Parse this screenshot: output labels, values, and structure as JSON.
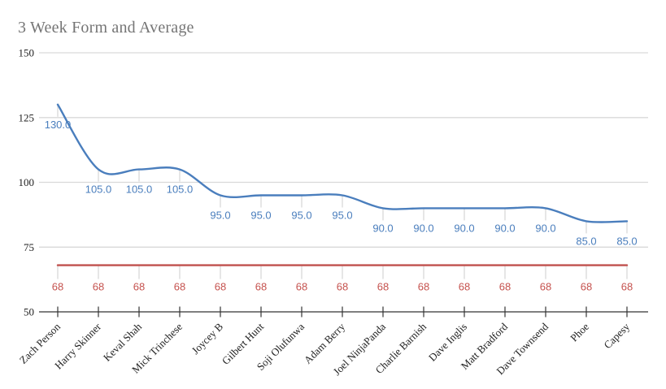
{
  "chart_data": {
    "type": "line",
    "smooth": true,
    "title": "3 Week Form and Average",
    "title_color": "#757575",
    "categories": [
      "Zach Person",
      "Harry Skinner",
      "Keval Shah",
      "Mick Trinchese",
      "Joycey B",
      "Gilbert Hunt",
      "Soji Olufunwa",
      "Adam Berry",
      "Joel NinjaPanda",
      "Charlie Barnish",
      "Dave Inglis",
      "Matt Bradford",
      "Dave Townsend",
      "Phoe",
      "Capesy"
    ],
    "series": [
      {
        "name": "form",
        "color": "#4a7ebd",
        "label_color": "#4a7ebd",
        "values": [
          130,
          105,
          105,
          105,
          95,
          95,
          95,
          95,
          90,
          90,
          90,
          90,
          90,
          85,
          85
        ],
        "labels": [
          "130.0",
          "105.0",
          "105.0",
          "105.0",
          "95.0",
          "95.0",
          "95.0",
          "95.0",
          "90.0",
          "90.0",
          "90.0",
          "90.0",
          "90.0",
          "85.0",
          "85.0"
        ]
      },
      {
        "name": "average",
        "color": "#c0504d",
        "label_color": "#c5524e",
        "values": [
          68,
          68,
          68,
          68,
          68,
          68,
          68,
          68,
          68,
          68,
          68,
          68,
          68,
          68,
          68
        ],
        "labels": [
          "68",
          "68",
          "68",
          "68",
          "68",
          "68",
          "68",
          "68",
          "68",
          "68",
          "68",
          "68",
          "68",
          "68",
          "68"
        ]
      }
    ],
    "ylim": [
      50,
      150
    ],
    "yticks": [
      50,
      75,
      100,
      125,
      150
    ],
    "grid": {
      "horizontal": true,
      "vertical": false,
      "color": "#d9d9d9"
    },
    "axis_color": "#333333",
    "tick_label_color": "#212121",
    "annotation_stem_color": "#d9d9d9",
    "legend_position": "none"
  }
}
